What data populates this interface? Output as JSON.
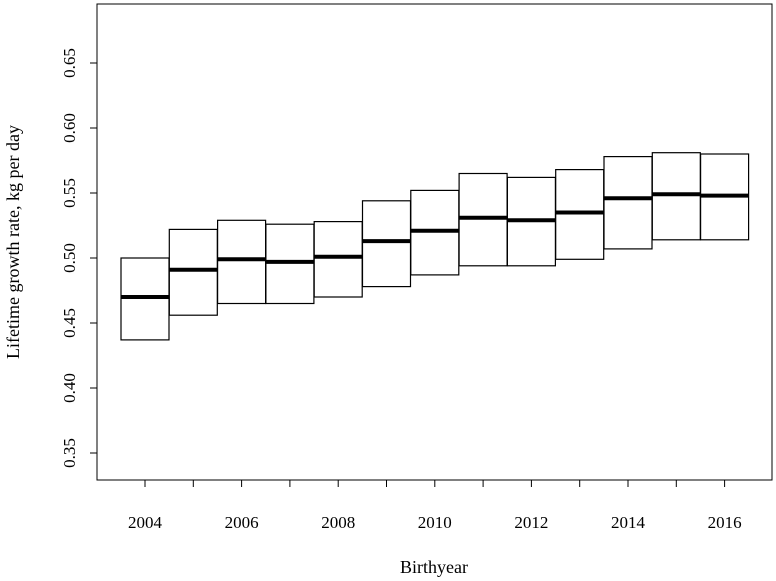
{
  "chart_data": {
    "type": "box",
    "xlabel": "Birthyear",
    "ylabel": "Lifetime growth rate, kg per day",
    "ylim": [
      0.32,
      0.68
    ],
    "yticks": [
      "0.35",
      "0.40",
      "0.45",
      "0.50",
      "0.55",
      "0.60",
      "0.65"
    ],
    "xticks": [
      "2004",
      "2006",
      "2008",
      "2010",
      "2012",
      "2014",
      "2016"
    ],
    "grid": false,
    "series": [
      {
        "x": [
          2004,
          2005,
          2006,
          2007,
          2008,
          2009,
          2010,
          2011,
          2012,
          2013,
          2014,
          2015,
          2016
        ],
        "lower": [
          0.437,
          0.456,
          0.465,
          0.465,
          0.47,
          0.478,
          0.487,
          0.494,
          0.494,
          0.499,
          0.507,
          0.514,
          0.514
        ],
        "median": [
          0.47,
          0.491,
          0.499,
          0.497,
          0.501,
          0.513,
          0.521,
          0.531,
          0.529,
          0.535,
          0.546,
          0.549,
          0.548
        ],
        "upper": [
          0.5,
          0.522,
          0.529,
          0.526,
          0.528,
          0.544,
          0.552,
          0.565,
          0.562,
          0.568,
          0.578,
          0.581,
          0.58
        ]
      }
    ]
  }
}
